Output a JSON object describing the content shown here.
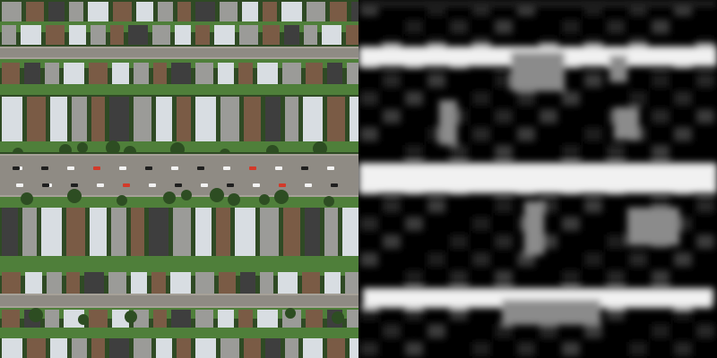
{
  "panels": [
    {
      "kind": "aerial-photo",
      "icon": "satellite-image-icon",
      "colors": {
        "road": "#8f8b84",
        "lawn": "#4f7f3a",
        "dark_lawn": "#2f4a24",
        "roof_light": "#d8dde2",
        "roof_mid": "#9b9b98",
        "roof_brown": "#7a5b45",
        "roof_dark": "#3e3e3e",
        "tree": "#2d4d22",
        "car_white": "#f2f2f2",
        "car_dark": "#1f1f1f",
        "car_red": "#d33a2a"
      }
    },
    {
      "kind": "road-probability-map",
      "icon": "heatmap-icon",
      "colors": {
        "background": "#000000",
        "dark_block": "#0b0b0b",
        "mid_gray": "#3b3b3b",
        "light_gray": "#8b8b8b",
        "road_white": "#f1f1f1"
      }
    }
  ]
}
